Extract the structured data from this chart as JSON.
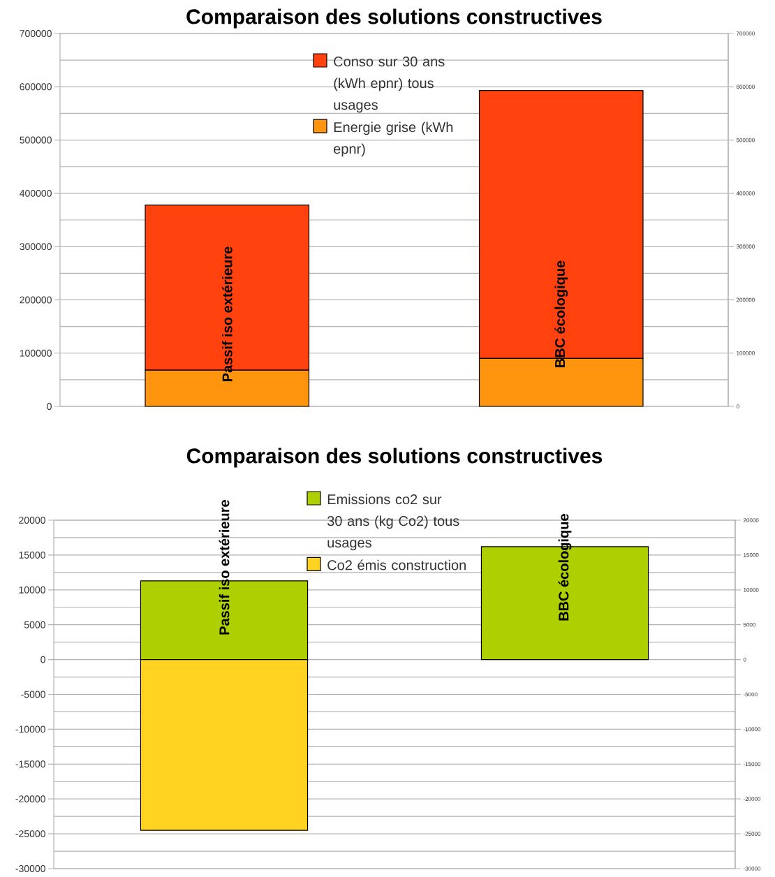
{
  "chart_data": [
    {
      "type": "bar",
      "title": "Comparaison des solutions constructives",
      "categories": [
        "Passif iso extérieure",
        "BBC écologique"
      ],
      "stacked": true,
      "series": [
        {
          "name": "Energie grise (kWh epnr)",
          "color": "#ff950e",
          "values": [
            68000,
            90000
          ]
        },
        {
          "name": "Conso sur 30 ans (kWh epnr) tous usages",
          "color": "#ff420e",
          "values": [
            310000,
            503000
          ]
        }
      ],
      "ylim": [
        0,
        700000
      ],
      "yticks": [
        0,
        {
          "value": 50000,
          "label": null
        },
        100000,
        {
          "value": 150000,
          "label": null
        },
        200000,
        {
          "value": 250000,
          "label": null
        },
        300000,
        {
          "value": 350000,
          "label": null
        },
        400000,
        {
          "value": 450000,
          "label": null
        },
        500000,
        {
          "value": 550000,
          "label": null
        },
        600000,
        {
          "value": 650000,
          "label": null
        },
        700000
      ],
      "y2lim": [
        0,
        700000
      ],
      "y2ticks": [
        0,
        100000,
        200000,
        300000,
        400000,
        500000,
        600000,
        700000
      ],
      "grid": "y",
      "legend": "top"
    },
    {
      "type": "bar",
      "title": "Comparaison des solutions constructives",
      "categories": [
        "Passif iso extérieure",
        "BBC écologique"
      ],
      "stacked": true,
      "series": [
        {
          "name": "Co2 émis construction",
          "color": "#ffd320",
          "values": [
            -24500,
            0
          ]
        },
        {
          "name": "Emissions co2 sur 30 ans (kg Co2) tous usages",
          "color": "#aecf00",
          "values": [
            11300,
            16200
          ]
        }
      ],
      "ylim": [
        -30000,
        20000
      ],
      "yticks": [
        -30000,
        {
          "value": -27500,
          "label": null
        },
        -25000,
        {
          "value": -22500,
          "label": null
        },
        -20000,
        {
          "value": -17500,
          "label": null
        },
        -15000,
        {
          "value": -12500,
          "label": null
        },
        -10000,
        {
          "value": -7500,
          "label": null
        },
        -5000,
        {
          "value": -2500,
          "label": null
        },
        0,
        {
          "value": 2500,
          "label": null
        },
        5000,
        {
          "value": 7500,
          "label": null
        },
        10000,
        {
          "value": 12500,
          "label": null
        },
        15000,
        {
          "value": 17500,
          "label": null
        },
        20000
      ],
      "y2lim": [
        -30000,
        20000
      ],
      "y2ticks": [
        -30000,
        -25000,
        -20000,
        -15000,
        -10000,
        -5000,
        0,
        5000,
        10000,
        15000,
        20000
      ],
      "grid": "y",
      "legend": "top"
    }
  ]
}
